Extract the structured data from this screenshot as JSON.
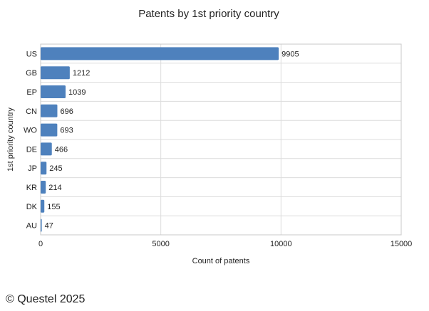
{
  "chart_data": {
    "type": "bar",
    "orientation": "horizontal",
    "title": "Patents by 1st priority country",
    "xlabel": "Count of patents",
    "ylabel": "1st priority country",
    "categories": [
      "US",
      "GB",
      "EP",
      "CN",
      "WO",
      "DE",
      "JP",
      "KR",
      "DK",
      "AU"
    ],
    "values": [
      9905,
      1212,
      1039,
      696,
      693,
      466,
      245,
      214,
      155,
      47
    ],
    "xlim": [
      0,
      15000
    ],
    "xticks": [
      0,
      5000,
      10000,
      15000
    ],
    "grid": true,
    "legend": "none",
    "bar_color": "#4e81bd"
  },
  "footer": {
    "copyright": "© Questel 2025"
  }
}
